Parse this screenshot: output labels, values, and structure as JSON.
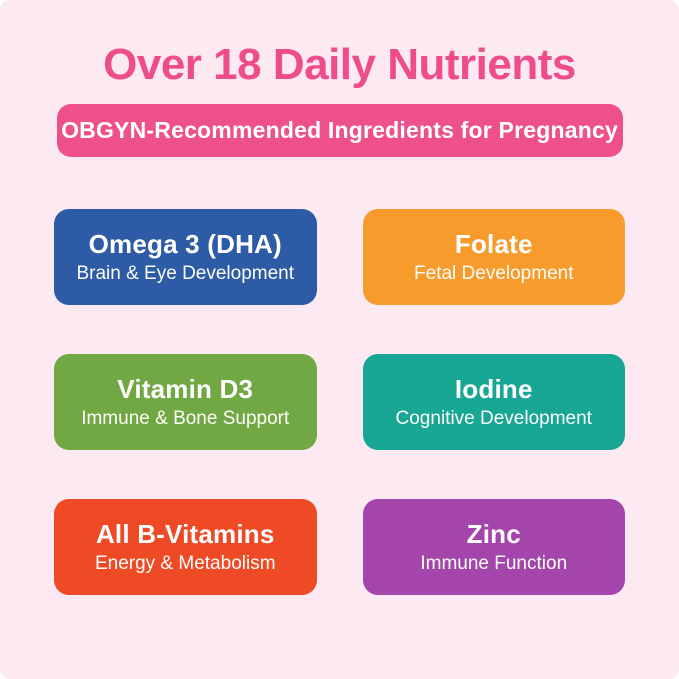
{
  "page": {
    "title": "Over 18 Daily Nutrients",
    "banner": "OBGYN-Recommended Ingredients for Pregnancy"
  },
  "colors": {
    "background": "#fce9f1",
    "title_text": "#ee4d87",
    "banner_bg": "#ee5189",
    "banner_text": "#ffffff"
  },
  "cards": [
    {
      "title": "Omega 3 (DHA)",
      "subtitle": "Brain & Eye Development",
      "color": "#2d5ba6"
    },
    {
      "title": "Folate",
      "subtitle": "Fetal Development",
      "color": "#f89b2d"
    },
    {
      "title": "Vitamin D3",
      "subtitle": "Immune & Bone Support",
      "color": "#72a843"
    },
    {
      "title": "Iodine",
      "subtitle": "Cognitive Development",
      "color": "#18a795"
    },
    {
      "title": "All B-Vitamins",
      "subtitle": "Energy & Metabolism",
      "color": "#ee4a26"
    },
    {
      "title": "Zinc",
      "subtitle": "Immune Function",
      "color": "#a445ab"
    }
  ]
}
